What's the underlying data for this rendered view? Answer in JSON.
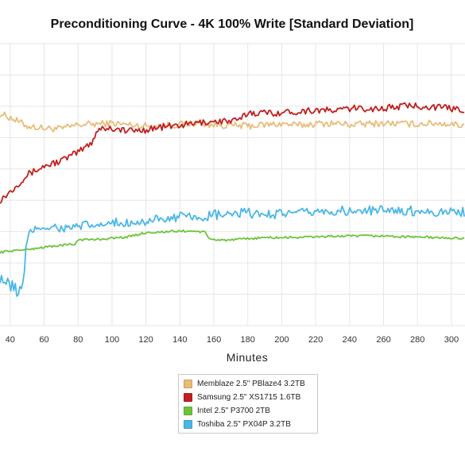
{
  "chart_data": {
    "type": "line",
    "title": "Preconditioning Curve - 4K 100% Write [Standard Deviation]",
    "xlabel": "Minutes",
    "ylabel": "",
    "x_ticks": [
      40,
      60,
      80,
      100,
      120,
      140,
      160,
      180,
      200,
      220,
      240,
      260,
      280,
      300
    ],
    "xlim": [
      34,
      308
    ],
    "y_grid_fraction_lines": 9,
    "grid": true,
    "legend_position": "bottom-center",
    "series": [
      {
        "name": "Memblaze 2.5\" PBlaze4 3.2TB",
        "color": "#e9bc78",
        "points": [
          [
            34,
            0.752
          ],
          [
            40,
            0.738
          ],
          [
            50,
            0.708
          ],
          [
            60,
            0.7
          ],
          [
            70,
            0.698
          ],
          [
            80,
            0.712
          ],
          [
            90,
            0.715
          ],
          [
            100,
            0.718
          ],
          [
            110,
            0.712
          ],
          [
            120,
            0.708
          ],
          [
            130,
            0.71
          ],
          [
            140,
            0.713
          ],
          [
            150,
            0.718
          ],
          [
            160,
            0.712
          ],
          [
            170,
            0.71
          ],
          [
            180,
            0.708
          ],
          [
            190,
            0.712
          ],
          [
            200,
            0.716
          ],
          [
            210,
            0.71
          ],
          [
            220,
            0.716
          ],
          [
            230,
            0.718
          ],
          [
            240,
            0.713
          ],
          [
            250,
            0.715
          ],
          [
            260,
            0.718
          ],
          [
            270,
            0.716
          ],
          [
            280,
            0.715
          ],
          [
            290,
            0.718
          ],
          [
            300,
            0.715
          ],
          [
            308,
            0.71
          ]
        ]
      },
      {
        "name": "Samsung 2.5\" XS1715 1.6TB",
        "color": "#c0201e",
        "points": [
          [
            34,
            0.445
          ],
          [
            40,
            0.475
          ],
          [
            50,
            0.535
          ],
          [
            60,
            0.565
          ],
          [
            70,
            0.585
          ],
          [
            80,
            0.615
          ],
          [
            88,
            0.65
          ],
          [
            92,
            0.7
          ],
          [
            100,
            0.7
          ],
          [
            110,
            0.69
          ],
          [
            120,
            0.695
          ],
          [
            130,
            0.705
          ],
          [
            140,
            0.71
          ],
          [
            150,
            0.718
          ],
          [
            160,
            0.725
          ],
          [
            170,
            0.725
          ],
          [
            175,
            0.728
          ],
          [
            180,
            0.755
          ],
          [
            190,
            0.755
          ],
          [
            200,
            0.755
          ],
          [
            210,
            0.76
          ],
          [
            220,
            0.765
          ],
          [
            230,
            0.762
          ],
          [
            240,
            0.77
          ],
          [
            250,
            0.77
          ],
          [
            260,
            0.77
          ],
          [
            270,
            0.778
          ],
          [
            280,
            0.78
          ],
          [
            290,
            0.775
          ],
          [
            300,
            0.77
          ],
          [
            308,
            0.765
          ]
        ]
      },
      {
        "name": "Intel 2.5\" P3700 2TB",
        "color": "#6dc43a",
        "points": [
          [
            34,
            0.26
          ],
          [
            40,
            0.265
          ],
          [
            50,
            0.27
          ],
          [
            60,
            0.278
          ],
          [
            70,
            0.285
          ],
          [
            78,
            0.288
          ],
          [
            80,
            0.305
          ],
          [
            90,
            0.305
          ],
          [
            100,
            0.31
          ],
          [
            110,
            0.315
          ],
          [
            120,
            0.33
          ],
          [
            130,
            0.332
          ],
          [
            140,
            0.335
          ],
          [
            150,
            0.335
          ],
          [
            155,
            0.33
          ],
          [
            157,
            0.308
          ],
          [
            160,
            0.305
          ],
          [
            170,
            0.303
          ],
          [
            180,
            0.308
          ],
          [
            190,
            0.312
          ],
          [
            200,
            0.312
          ],
          [
            210,
            0.313
          ],
          [
            220,
            0.315
          ],
          [
            230,
            0.317
          ],
          [
            240,
            0.317
          ],
          [
            250,
            0.318
          ],
          [
            260,
            0.318
          ],
          [
            270,
            0.315
          ],
          [
            280,
            0.315
          ],
          [
            290,
            0.312
          ],
          [
            300,
            0.31
          ],
          [
            308,
            0.31
          ]
        ]
      },
      {
        "name": "Toshiba 2.5\" PX04P 3.2TB",
        "color": "#4ab6e8",
        "points": [
          [
            34,
            0.18
          ],
          [
            38,
            0.145
          ],
          [
            42,
            0.13
          ],
          [
            46,
            0.125
          ],
          [
            48,
            0.14
          ],
          [
            49,
            0.27
          ],
          [
            52,
            0.335
          ],
          [
            56,
            0.345
          ],
          [
            60,
            0.35
          ],
          [
            65,
            0.35
          ],
          [
            70,
            0.345
          ],
          [
            80,
            0.35
          ],
          [
            90,
            0.355
          ],
          [
            100,
            0.36
          ],
          [
            110,
            0.365
          ],
          [
            120,
            0.37
          ],
          [
            130,
            0.375
          ],
          [
            140,
            0.385
          ],
          [
            150,
            0.38
          ],
          [
            160,
            0.39
          ],
          [
            170,
            0.395
          ],
          [
            180,
            0.398
          ],
          [
            190,
            0.395
          ],
          [
            200,
            0.4
          ],
          [
            210,
            0.398
          ],
          [
            220,
            0.405
          ],
          [
            230,
            0.405
          ],
          [
            240,
            0.405
          ],
          [
            250,
            0.405
          ],
          [
            260,
            0.41
          ],
          [
            270,
            0.41
          ],
          [
            280,
            0.405
          ],
          [
            290,
            0.405
          ],
          [
            300,
            0.405
          ],
          [
            308,
            0.402
          ]
        ]
      }
    ]
  }
}
